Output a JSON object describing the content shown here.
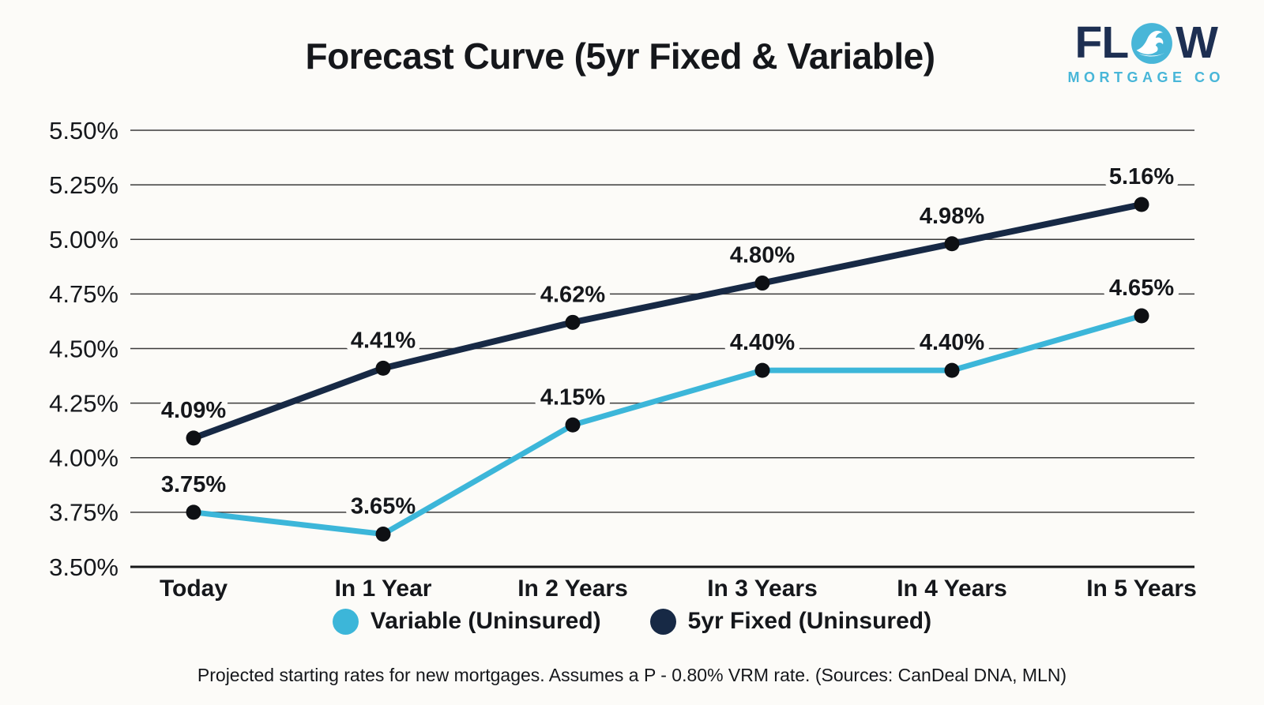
{
  "page": {
    "background": "#fcfbf8",
    "text_color": "#15171b"
  },
  "header": {
    "title": "Forecast Curve (5yr Fixed & Variable)"
  },
  "logo": {
    "word_prefix": "FL",
    "word_suffix": "W",
    "subtitle": "MORTGAGE CO",
    "navy": "#1d2f52",
    "cyan": "#48b6d8",
    "wave_icon": "wave-in-circle"
  },
  "chart_data": {
    "type": "line",
    "title": "Forecast Curve (5yr Fixed & Variable)",
    "categories": [
      "Today",
      "In 1 Year",
      "In 2 Years",
      "In 3 Years",
      "In 4 Years",
      "In 5 Years"
    ],
    "series": [
      {
        "id": "variable-uninsured",
        "name": "Variable (Uninsured)",
        "color": "#3cb6d9",
        "line_width": 7,
        "values": [
          3.75,
          3.65,
          4.15,
          4.4,
          4.4,
          4.65
        ],
        "value_labels": [
          "3.75%",
          "3.65%",
          "4.15%",
          "4.40%",
          "4.40%",
          "4.65%"
        ]
      },
      {
        "id": "fixed-5yr-uninsured",
        "name": "5yr Fixed (Uninsured)",
        "color": "#172945",
        "line_width": 8,
        "values": [
          4.09,
          4.41,
          4.62,
          4.8,
          4.98,
          5.16
        ],
        "value_labels": [
          "4.09%",
          "4.41%",
          "4.62%",
          "4.80%",
          "4.98%",
          "5.16%"
        ]
      }
    ],
    "y_axis": {
      "min": 3.5,
      "max": 5.5,
      "ticks": [
        {
          "value": 5.5,
          "label": "5.50%"
        },
        {
          "value": 5.25,
          "label": "5.25%"
        },
        {
          "value": 5.0,
          "label": "5.00%"
        },
        {
          "value": 4.75,
          "label": "4.75%"
        },
        {
          "value": 4.5,
          "label": "4.50%"
        },
        {
          "value": 4.25,
          "label": "4.25%"
        },
        {
          "value": 4.0,
          "label": "4.00%"
        },
        {
          "value": 3.75,
          "label": "3.75%"
        },
        {
          "value": 3.5,
          "label": "3.50%"
        }
      ],
      "grid": true
    },
    "grid_color": "#3b3b3b",
    "axis_color": "#17181a",
    "point_color": "#0e1014",
    "legend_position": "bottom"
  },
  "legend": {
    "items": [
      {
        "label": "Variable (Uninsured)",
        "color": "#3cb6d9"
      },
      {
        "label": "5yr Fixed (Uninsured)",
        "color": "#172945"
      }
    ]
  },
  "footnote": "Projected starting rates for new mortgages. Assumes a P - 0.80% VRM rate. (Sources: CanDeal DNA, MLN)"
}
